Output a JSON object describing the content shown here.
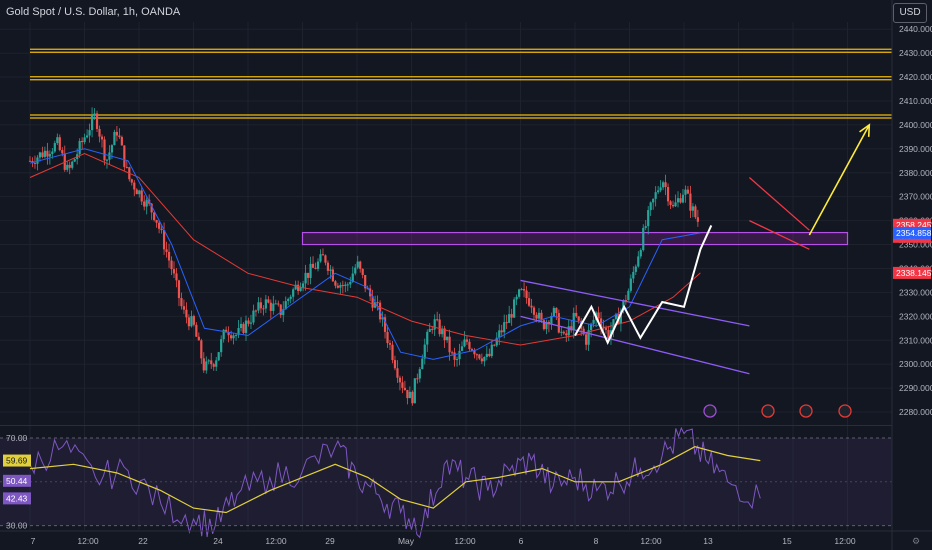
{
  "header": {
    "title": "Gold Spot / U.S. Dollar, 1h, OANDA",
    "currency_button": "USD"
  },
  "colors": {
    "background": "#131722",
    "up": "#26a69a",
    "down": "#ef5350",
    "resistance": "#f0b90b",
    "zone": "#b451e6",
    "channel": "#8d5cf6",
    "projection": "#ffeb3b",
    "rsi": "#7e57c2",
    "rsi_ma": "#e1d03b"
  },
  "chart_data": [
    {
      "type": "candlestick",
      "title": "Gold Spot / U.S. Dollar, 1h, OANDA",
      "y_axis": {
        "ylim": [
          2275,
          2443
        ],
        "ticks": [
          2280,
          2290,
          2300,
          2310,
          2320,
          2330,
          2340,
          2350,
          2360,
          2370,
          2380,
          2390,
          2400,
          2410,
          2420,
          2430,
          2440
        ],
        "tick_labels": [
          "2280.000",
          "2290.000",
          "2300.000",
          "2310.000",
          "2320.000",
          "2330.000",
          "2340.000",
          "2350.000",
          "2360.000",
          "2370.000",
          "2380.000",
          "2390.000",
          "2400.000",
          "2410.000",
          "2420.000",
          "2430.000",
          "2440.000"
        ]
      },
      "x_axis": {
        "tick_labels": [
          "7",
          "12:00",
          "22",
          "24",
          "12:00",
          "29",
          "May",
          "12:00",
          "6",
          "8",
          "12:00",
          "13",
          "15",
          "12:00"
        ]
      },
      "grid": true,
      "price_tags": [
        {
          "value": 2358.245,
          "label": "2358.245",
          "countdown": "16:34",
          "color": "#f23645"
        },
        {
          "value": 2354.858,
          "label": "2354.858",
          "color": "#2962ff"
        },
        {
          "value": 2338.145,
          "label": "2338.145",
          "color": "#f23645"
        }
      ],
      "close_path": [
        [
          0,
          2385
        ],
        [
          0.5,
          2392
        ],
        [
          0.7,
          2380
        ],
        [
          1.0,
          2395
        ],
        [
          1.2,
          2404
        ],
        [
          1.4,
          2385
        ],
        [
          1.6,
          2398
        ],
        [
          1.8,
          2378
        ],
        [
          2.0,
          2372
        ],
        [
          2.3,
          2362
        ],
        [
          2.6,
          2340
        ],
        [
          2.8,
          2322
        ],
        [
          3.0,
          2316
        ],
        [
          3.2,
          2298
        ],
        [
          3.4,
          2302
        ],
        [
          3.6,
          2315
        ],
        [
          3.8,
          2312
        ],
        [
          4.0,
          2318
        ],
        [
          4.3,
          2326
        ],
        [
          4.6,
          2322
        ],
        [
          4.8,
          2330
        ],
        [
          5.0,
          2336
        ],
        [
          5.2,
          2340
        ],
        [
          5.4,
          2345
        ],
        [
          5.6,
          2335
        ],
        [
          5.8,
          2332
        ],
        [
          6.0,
          2342
        ],
        [
          6.2,
          2330
        ],
        [
          6.4,
          2322
        ],
        [
          6.6,
          2308
        ],
        [
          6.8,
          2293
        ],
        [
          7.0,
          2285
        ],
        [
          7.2,
          2305
        ],
        [
          7.4,
          2318
        ],
        [
          7.6,
          2312
        ],
        [
          7.8,
          2300
        ],
        [
          8.0,
          2310
        ],
        [
          8.2,
          2305
        ],
        [
          8.4,
          2302
        ],
        [
          8.6,
          2312
        ],
        [
          8.8,
          2320
        ],
        [
          9.0,
          2330
        ],
        [
          9.2,
          2326
        ],
        [
          9.4,
          2316
        ],
        [
          9.6,
          2322
        ],
        [
          9.8,
          2310
        ],
        [
          10.0,
          2320
        ],
        [
          10.2,
          2310
        ],
        [
          10.4,
          2322
        ],
        [
          10.6,
          2312
        ],
        [
          10.8,
          2320
        ],
        [
          11.0,
          2332
        ],
        [
          11.2,
          2350
        ],
        [
          11.4,
          2366
        ],
        [
          11.6,
          2378
        ],
        [
          11.8,
          2365
        ],
        [
          12.0,
          2373
        ],
        [
          12.2,
          2362
        ],
        [
          12.3,
          2358.245
        ]
      ],
      "ma_fast": [
        [
          0,
          2384
        ],
        [
          1.0,
          2390
        ],
        [
          1.8,
          2385
        ],
        [
          2.6,
          2350
        ],
        [
          3.2,
          2315
        ],
        [
          4.0,
          2312
        ],
        [
          4.8,
          2325
        ],
        [
          5.6,
          2338
        ],
        [
          6.2,
          2332
        ],
        [
          6.8,
          2305
        ],
        [
          7.4,
          2302
        ],
        [
          8.2,
          2306
        ],
        [
          9.0,
          2316
        ],
        [
          9.6,
          2320
        ],
        [
          10.4,
          2316
        ],
        [
          11.0,
          2324
        ],
        [
          11.6,
          2352
        ],
        [
          12.3,
          2354.858
        ]
      ],
      "ma_slow": [
        [
          0,
          2378
        ],
        [
          1.0,
          2388
        ],
        [
          2.0,
          2378
        ],
        [
          3.0,
          2352
        ],
        [
          4.0,
          2338
        ],
        [
          5.0,
          2332
        ],
        [
          6.0,
          2328
        ],
        [
          7.0,
          2318
        ],
        [
          8.0,
          2312
        ],
        [
          9.0,
          2308
        ],
        [
          10.0,
          2312
        ],
        [
          11.0,
          2318
        ],
        [
          11.8,
          2328
        ],
        [
          12.3,
          2338.145
        ]
      ],
      "resistance_levels": [
        2431,
        2419.5,
        2403.5
      ],
      "support_zone": {
        "from": [
          5.0,
          2350
        ],
        "to": [
          15.0,
          2355
        ]
      },
      "descending_channel": {
        "upper": [
          [
            9.0,
            2335
          ],
          [
            13.2,
            2316
          ]
        ],
        "lower": [
          [
            9.0,
            2320
          ],
          [
            13.2,
            2296
          ]
        ]
      },
      "zigzag": [
        [
          10.0,
          2312
        ],
        [
          10.3,
          2324
        ],
        [
          10.6,
          2309
        ],
        [
          10.9,
          2324
        ],
        [
          11.2,
          2311
        ],
        [
          11.6,
          2326
        ],
        [
          12.0,
          2324
        ],
        [
          12.3,
          2348
        ],
        [
          12.5,
          2358
        ]
      ],
      "projection_arrow": {
        "from": [
          14.3,
          2354
        ],
        "to": [
          15.4,
          2400
        ]
      },
      "pennant": {
        "upper": [
          [
            13.2,
            2378
          ],
          [
            14.3,
            2356
          ]
        ],
        "lower": [
          [
            13.2,
            2360
          ],
          [
            14.3,
            2348
          ]
        ]
      }
    },
    {
      "type": "line",
      "title": "RSI",
      "ylim": [
        28,
        75
      ],
      "tick_labels": [
        "70.00",
        "30.00"
      ],
      "ticks": [
        70,
        30
      ],
      "bands": [
        70,
        30
      ],
      "tags": [
        {
          "value": 59.69,
          "label": "59.69",
          "color": "#e1d03b"
        },
        {
          "value": 50.44,
          "label": "50.44",
          "color": "#7e57c2"
        },
        {
          "value": 42.43,
          "label": "42.43",
          "color": "#7e57c2"
        }
      ],
      "rsi_series": [
        [
          0,
          58
        ],
        [
          0.6,
          66
        ],
        [
          1.2,
          52
        ],
        [
          1.8,
          55
        ],
        [
          2.4,
          40
        ],
        [
          3.0,
          33
        ],
        [
          3.4,
          30
        ],
        [
          3.8,
          44
        ],
        [
          4.4,
          52
        ],
        [
          5.0,
          55
        ],
        [
          5.6,
          66
        ],
        [
          6.0,
          52
        ],
        [
          6.4,
          44
        ],
        [
          6.8,
          36
        ],
        [
          7.2,
          30
        ],
        [
          7.6,
          58
        ],
        [
          8.0,
          52
        ],
        [
          8.4,
          46
        ],
        [
          8.8,
          55
        ],
        [
          9.2,
          60
        ],
        [
          9.6,
          48
        ],
        [
          10.0,
          52
        ],
        [
          10.4,
          46
        ],
        [
          10.8,
          50
        ],
        [
          11.2,
          56
        ],
        [
          11.6,
          62
        ],
        [
          12.0,
          72
        ],
        [
          12.4,
          60
        ],
        [
          12.8,
          50
        ],
        [
          13.4,
          42.43
        ]
      ],
      "rsi_ma": [
        [
          0,
          56
        ],
        [
          0.8,
          58
        ],
        [
          1.6,
          54
        ],
        [
          2.4,
          46
        ],
        [
          3.0,
          38
        ],
        [
          3.6,
          36
        ],
        [
          4.4,
          46
        ],
        [
          5.0,
          52
        ],
        [
          5.6,
          58
        ],
        [
          6.2,
          52
        ],
        [
          6.8,
          42
        ],
        [
          7.4,
          38
        ],
        [
          8.0,
          50
        ],
        [
          8.6,
          52
        ],
        [
          9.4,
          56
        ],
        [
          10.0,
          50
        ],
        [
          10.8,
          50
        ],
        [
          11.6,
          58
        ],
        [
          12.2,
          66
        ],
        [
          12.8,
          62
        ],
        [
          13.4,
          59.69
        ]
      ]
    }
  ]
}
